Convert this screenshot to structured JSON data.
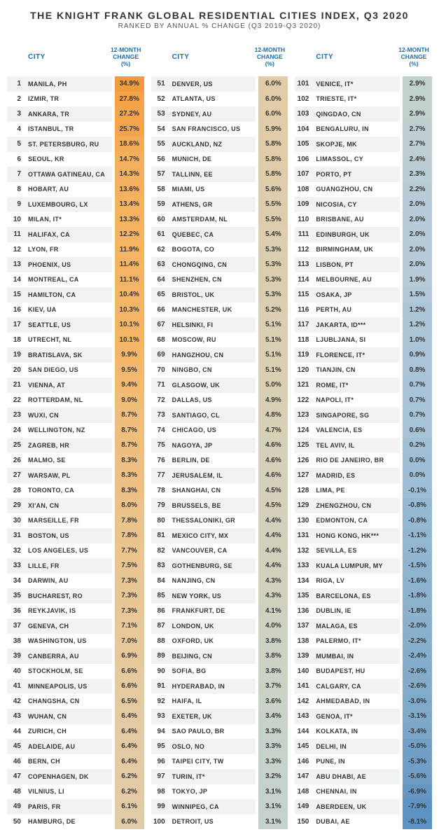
{
  "title": "THE KNIGHT FRANK GLOBAL RESIDENTIAL CITIES INDEX, Q3 2020",
  "subtitle": "RANKED BY ANNUAL % CHANGE (Q3 2019-Q3 2020)",
  "headers": {
    "city": "CITY",
    "change": "12-MONTH CHANGE (%)"
  },
  "color_scale": {
    "stops": [
      {
        "v": 35.0,
        "c": "#f39c3c"
      },
      {
        "v": 10.0,
        "c": "#f5b567"
      },
      {
        "v": 7.0,
        "c": "#e8c89a"
      },
      {
        "v": 5.0,
        "c": "#d9cfb3"
      },
      {
        "v": 3.5,
        "c": "#c9d3c8"
      },
      {
        "v": 2.0,
        "c": "#b7cbd8"
      },
      {
        "v": 0.0,
        "c": "#9fbfd6"
      },
      {
        "v": -3.0,
        "c": "#7fa9c9"
      },
      {
        "v": -8.5,
        "c": "#5a8fbf"
      }
    ]
  },
  "rows": [
    {
      "rank": 1,
      "city": "MANILA, PH",
      "change": 34.9
    },
    {
      "rank": 2,
      "city": "IZMIR, TR",
      "change": 27.8
    },
    {
      "rank": 3,
      "city": "ANKARA, TR",
      "change": 27.2
    },
    {
      "rank": 4,
      "city": "ISTANBUL, TR",
      "change": 25.7
    },
    {
      "rank": 5,
      "city": "ST. PETERSBURG, RU",
      "change": 18.6
    },
    {
      "rank": 6,
      "city": "SEOUL, KR",
      "change": 14.7
    },
    {
      "rank": 7,
      "city": "OTTAWA GATINEAU, CA",
      "change": 14.3
    },
    {
      "rank": 8,
      "city": "HOBART, AU",
      "change": 13.6
    },
    {
      "rank": 9,
      "city": "LUXEMBOURG, LX",
      "change": 13.4
    },
    {
      "rank": 10,
      "city": "MILAN, IT*",
      "change": 13.3
    },
    {
      "rank": 11,
      "city": "HALIFAX, CA",
      "change": 12.2
    },
    {
      "rank": 12,
      "city": "LYON, FR",
      "change": 11.9
    },
    {
      "rank": 13,
      "city": "PHOENIX, US",
      "change": 11.4
    },
    {
      "rank": 14,
      "city": "MONTREAL, CA",
      "change": 11.1
    },
    {
      "rank": 15,
      "city": "HAMILTON, CA",
      "change": 10.4
    },
    {
      "rank": 16,
      "city": "KIEV, UA",
      "change": 10.3
    },
    {
      "rank": 17,
      "city": "SEATTLE, US",
      "change": 10.1
    },
    {
      "rank": 18,
      "city": "UTRECHT, NL",
      "change": 10.1
    },
    {
      "rank": 19,
      "city": "BRATISLAVA, SK",
      "change": 9.9
    },
    {
      "rank": 20,
      "city": "SAN DIEGO, US",
      "change": 9.5
    },
    {
      "rank": 21,
      "city": "VIENNA, AT",
      "change": 9.4
    },
    {
      "rank": 22,
      "city": "ROTTERDAM, NL",
      "change": 9.0
    },
    {
      "rank": 23,
      "city": "WUXI, CN",
      "change": 8.7
    },
    {
      "rank": 24,
      "city": "WELLINGTON, NZ",
      "change": 8.7
    },
    {
      "rank": 25,
      "city": "ZAGREB, HR",
      "change": 8.7
    },
    {
      "rank": 26,
      "city": "MALMO, SE",
      "change": 8.3
    },
    {
      "rank": 27,
      "city": "WARSAW, PL",
      "change": 8.3
    },
    {
      "rank": 28,
      "city": "TORONTO, CA",
      "change": 8.3
    },
    {
      "rank": 29,
      "city": "XI'AN, CN",
      "change": 8.0
    },
    {
      "rank": 30,
      "city": "MARSEILLE, FR",
      "change": 7.8
    },
    {
      "rank": 31,
      "city": "BOSTON, US",
      "change": 7.8
    },
    {
      "rank": 32,
      "city": "LOS ANGELES, US",
      "change": 7.7
    },
    {
      "rank": 33,
      "city": "LILLE, FR",
      "change": 7.5
    },
    {
      "rank": 34,
      "city": "DARWIN, AU",
      "change": 7.3
    },
    {
      "rank": 35,
      "city": "BUCHAREST, RO",
      "change": 7.3
    },
    {
      "rank": 36,
      "city": "REYKJAVIK, IS",
      "change": 7.3
    },
    {
      "rank": 37,
      "city": "GENEVA, CH",
      "change": 7.1
    },
    {
      "rank": 38,
      "city": "WASHINGTON, US",
      "change": 7.0
    },
    {
      "rank": 39,
      "city": "CANBERRA, AU",
      "change": 6.9
    },
    {
      "rank": 40,
      "city": "STOCKHOLM, SE",
      "change": 6.6
    },
    {
      "rank": 41,
      "city": "MINNEAPOLIS, US",
      "change": 6.6
    },
    {
      "rank": 42,
      "city": "CHANGSHA, CN",
      "change": 6.5
    },
    {
      "rank": 43,
      "city": "WUHAN, CN",
      "change": 6.4
    },
    {
      "rank": 44,
      "city": "ZURICH, CH",
      "change": 6.4
    },
    {
      "rank": 45,
      "city": "ADELAIDE, AU",
      "change": 6.4
    },
    {
      "rank": 46,
      "city": "BERN, CH",
      "change": 6.4
    },
    {
      "rank": 47,
      "city": "COPENHAGEN, DK",
      "change": 6.2
    },
    {
      "rank": 48,
      "city": "VILNIUS, LI",
      "change": 6.2
    },
    {
      "rank": 49,
      "city": "PARIS, FR",
      "change": 6.1
    },
    {
      "rank": 50,
      "city": "HAMBURG, DE",
      "change": 6.0
    },
    {
      "rank": 51,
      "city": "DENVER, US",
      "change": 6.0
    },
    {
      "rank": 52,
      "city": "ATLANTA, US",
      "change": 6.0
    },
    {
      "rank": 53,
      "city": "SYDNEY, AU",
      "change": 6.0
    },
    {
      "rank": 54,
      "city": "SAN FRANCISCO, US",
      "change": 5.9
    },
    {
      "rank": 55,
      "city": "AUCKLAND, NZ",
      "change": 5.8
    },
    {
      "rank": 56,
      "city": "MUNICH, DE",
      "change": 5.8
    },
    {
      "rank": 57,
      "city": "TALLINN, EE",
      "change": 5.8
    },
    {
      "rank": 58,
      "city": "MIAMI, US",
      "change": 5.6
    },
    {
      "rank": 59,
      "city": "ATHENS, GR",
      "change": 5.5
    },
    {
      "rank": 60,
      "city": "AMSTERDAM, NL",
      "change": 5.5
    },
    {
      "rank": 61,
      "city": "QUEBEC, CA",
      "change": 5.4
    },
    {
      "rank": 62,
      "city": "BOGOTA, CO",
      "change": 5.3
    },
    {
      "rank": 63,
      "city": "CHONGQING, CN",
      "change": 5.3
    },
    {
      "rank": 64,
      "city": "SHENZHEN, CN",
      "change": 5.3
    },
    {
      "rank": 65,
      "city": "BRISTOL, UK",
      "change": 5.3
    },
    {
      "rank": 66,
      "city": "MANCHESTER, UK",
      "change": 5.2
    },
    {
      "rank": 67,
      "city": "HELSINKI, FI",
      "change": 5.1
    },
    {
      "rank": 68,
      "city": "MOSCOW, RU",
      "change": 5.1
    },
    {
      "rank": 69,
      "city": "HANGZHOU, CN",
      "change": 5.1
    },
    {
      "rank": 70,
      "city": "NINGBO, CN",
      "change": 5.1
    },
    {
      "rank": 71,
      "city": "GLASGOW, UK",
      "change": 5.0
    },
    {
      "rank": 72,
      "city": "DALLAS, US",
      "change": 4.9
    },
    {
      "rank": 73,
      "city": "SANTIAGO, CL",
      "change": 4.8
    },
    {
      "rank": 74,
      "city": "CHICAGO, US",
      "change": 4.7
    },
    {
      "rank": 75,
      "city": "NAGOYA, JP",
      "change": 4.6
    },
    {
      "rank": 76,
      "city": "BERLIN, DE",
      "change": 4.6
    },
    {
      "rank": 77,
      "city": "JERUSALEM, IL",
      "change": 4.6
    },
    {
      "rank": 78,
      "city": "SHANGHAI, CN",
      "change": 4.5
    },
    {
      "rank": 79,
      "city": "BRUSSELS, BE",
      "change": 4.5
    },
    {
      "rank": 80,
      "city": "THESSALONIKI, GR",
      "change": 4.4
    },
    {
      "rank": 81,
      "city": "MEXICO CITY, MX",
      "change": 4.4
    },
    {
      "rank": 82,
      "city": "VANCOUVER, CA",
      "change": 4.4
    },
    {
      "rank": 83,
      "city": "GOTHENBURG, SE",
      "change": 4.4
    },
    {
      "rank": 84,
      "city": "NANJING, CN",
      "change": 4.3
    },
    {
      "rank": 85,
      "city": "NEW YORK, US",
      "change": 4.3
    },
    {
      "rank": 86,
      "city": "FRANKFURT, DE",
      "change": 4.1
    },
    {
      "rank": 87,
      "city": "LONDON, UK",
      "change": 4.0
    },
    {
      "rank": 88,
      "city": "OXFORD, UK",
      "change": 3.8
    },
    {
      "rank": 89,
      "city": "BEIJING, CN",
      "change": 3.8
    },
    {
      "rank": 90,
      "city": "SOFIA, BG",
      "change": 3.8
    },
    {
      "rank": 91,
      "city": "HYDERABAD, IN",
      "change": 3.7
    },
    {
      "rank": 92,
      "city": "HAIFA, IL",
      "change": 3.6
    },
    {
      "rank": 93,
      "city": "EXETER, UK",
      "change": 3.4
    },
    {
      "rank": 94,
      "city": "SAO PAULO, BR",
      "change": 3.3
    },
    {
      "rank": 95,
      "city": "OSLO, NO",
      "change": 3.3
    },
    {
      "rank": 96,
      "city": "TAIPEI CITY, TW",
      "change": 3.3
    },
    {
      "rank": 97,
      "city": "TURIN, IT*",
      "change": 3.2
    },
    {
      "rank": 98,
      "city": "TOKYO, JP",
      "change": 3.1
    },
    {
      "rank": 99,
      "city": "WINNIPEG, CA",
      "change": 3.1
    },
    {
      "rank": 100,
      "city": "DETROIT, US",
      "change": 3.1
    },
    {
      "rank": 101,
      "city": "VENICE, IT*",
      "change": 2.9
    },
    {
      "rank": 102,
      "city": "TRIESTE, IT*",
      "change": 2.9
    },
    {
      "rank": 103,
      "city": "QINGDAO, CN",
      "change": 2.9
    },
    {
      "rank": 104,
      "city": "BENGALURU, IN",
      "change": 2.7
    },
    {
      "rank": 105,
      "city": "SKOPJE, MK",
      "change": 2.7
    },
    {
      "rank": 106,
      "city": "LIMASSOL, CY",
      "change": 2.4
    },
    {
      "rank": 107,
      "city": "PORTO, PT",
      "change": 2.3
    },
    {
      "rank": 108,
      "city": "GUANGZHOU, CN",
      "change": 2.2
    },
    {
      "rank": 109,
      "city": "NICOSIA, CY",
      "change": 2.0
    },
    {
      "rank": 110,
      "city": "BRISBANE, AU",
      "change": 2.0
    },
    {
      "rank": 111,
      "city": "EDINBURGH, UK",
      "change": 2.0
    },
    {
      "rank": 112,
      "city": "BIRMINGHAM, UK",
      "change": 2.0
    },
    {
      "rank": 113,
      "city": "LISBON, PT",
      "change": 2.0
    },
    {
      "rank": 114,
      "city": "MELBOURNE, AU",
      "change": 1.9
    },
    {
      "rank": 115,
      "city": "OSAKA, JP",
      "change": 1.5
    },
    {
      "rank": 116,
      "city": "PERTH, AU",
      "change": 1.2
    },
    {
      "rank": 117,
      "city": "JAKARTA, ID***",
      "change": 1.2
    },
    {
      "rank": 118,
      "city": "LJUBLJANA, SI",
      "change": 1.0
    },
    {
      "rank": 119,
      "city": "FLORENCE, IT*",
      "change": 0.9
    },
    {
      "rank": 120,
      "city": "TIANJIN, CN",
      "change": 0.8
    },
    {
      "rank": 121,
      "city": "ROME, IT*",
      "change": 0.7
    },
    {
      "rank": 122,
      "city": "NAPOLI, IT*",
      "change": 0.7
    },
    {
      "rank": 123,
      "city": "SINGAPORE, SG",
      "change": 0.7
    },
    {
      "rank": 124,
      "city": "VALENCIA, ES",
      "change": 0.6
    },
    {
      "rank": 125,
      "city": "TEL AVIV, IL",
      "change": 0.2
    },
    {
      "rank": 126,
      "city": "RIO DE JANEIRO, BR",
      "change": 0.0
    },
    {
      "rank": 127,
      "city": "MADRID, ES",
      "change": 0.0
    },
    {
      "rank": 128,
      "city": "LIMA, PE",
      "change": -0.1
    },
    {
      "rank": 129,
      "city": "ZHENGZHOU, CN",
      "change": -0.8
    },
    {
      "rank": 130,
      "city": "EDMONTON, CA",
      "change": -0.8
    },
    {
      "rank": 131,
      "city": "HONG KONG, HK***",
      "change": -1.1
    },
    {
      "rank": 132,
      "city": "SEVILLA, ES",
      "change": -1.2
    },
    {
      "rank": 133,
      "city": "KUALA LUMPUR, MY",
      "change": -1.5
    },
    {
      "rank": 134,
      "city": "RIGA, LV",
      "change": -1.6
    },
    {
      "rank": 135,
      "city": "BARCELONA, ES",
      "change": -1.8
    },
    {
      "rank": 136,
      "city": "DUBLIN, IE",
      "change": -1.8
    },
    {
      "rank": 137,
      "city": "MALAGA, ES",
      "change": -2.0
    },
    {
      "rank": 138,
      "city": "PALERMO, IT*",
      "change": -2.2
    },
    {
      "rank": 139,
      "city": "MUMBAI, IN",
      "change": -2.4
    },
    {
      "rank": 140,
      "city": "BUDAPEST, HU",
      "change": -2.6
    },
    {
      "rank": 141,
      "city": "CALGARY, CA",
      "change": -2.6
    },
    {
      "rank": 142,
      "city": "AHMEDABAD, IN",
      "change": -3.0
    },
    {
      "rank": 143,
      "city": "GENOA, IT*",
      "change": -3.1
    },
    {
      "rank": 144,
      "city": "KOLKATA, IN",
      "change": -3.4
    },
    {
      "rank": 145,
      "city": "DELHI, IN",
      "change": -5.0
    },
    {
      "rank": 146,
      "city": "PUNE, IN",
      "change": -5.3
    },
    {
      "rank": 147,
      "city": "ABU DHABI, AE",
      "change": -5.6
    },
    {
      "rank": 148,
      "city": "CHENNAI, IN",
      "change": -6.9
    },
    {
      "rank": 149,
      "city": "ABERDEEN, UK",
      "change": -7.9
    },
    {
      "rank": 150,
      "city": "DUBAI, AE",
      "change": -8.1
    }
  ]
}
